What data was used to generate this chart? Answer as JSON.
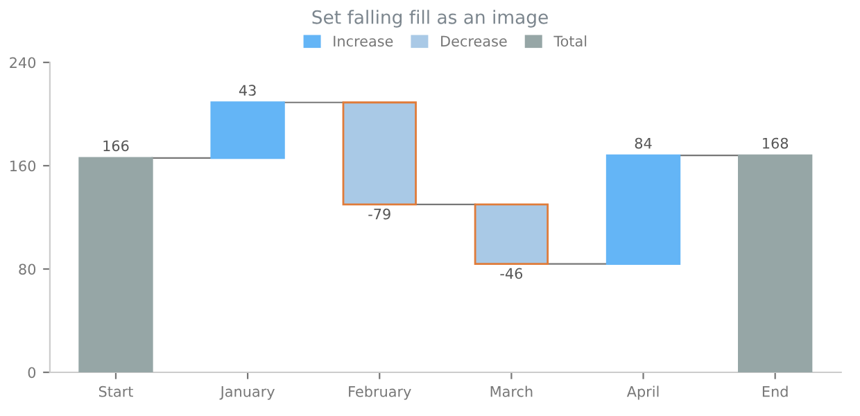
{
  "chart_data": {
    "type": "bar",
    "title": "Set falling fill as an image",
    "categories": [
      "Start",
      "January",
      "February",
      "March",
      "April",
      "End"
    ],
    "series": [
      {
        "name": "Increase",
        "color": "#64b5f6",
        "values": [
          null,
          43,
          null,
          null,
          84,
          null
        ],
        "base": [
          null,
          166,
          null,
          null,
          84,
          null
        ]
      },
      {
        "name": "Decrease",
        "color": "#a9c9e6",
        "values": [
          null,
          null,
          -79,
          -46,
          null,
          null
        ],
        "base": [
          null,
          null,
          209,
          130,
          null,
          null
        ]
      },
      {
        "name": "Total",
        "color": "#96a6a6",
        "values": [
          166,
          null,
          null,
          null,
          null,
          168
        ],
        "base": [
          0,
          null,
          null,
          null,
          null,
          0
        ]
      }
    ],
    "data_labels": true,
    "ylim": [
      0,
      240
    ],
    "yticks": [
      0,
      80,
      160,
      240
    ],
    "grid": false,
    "legend": "top"
  }
}
